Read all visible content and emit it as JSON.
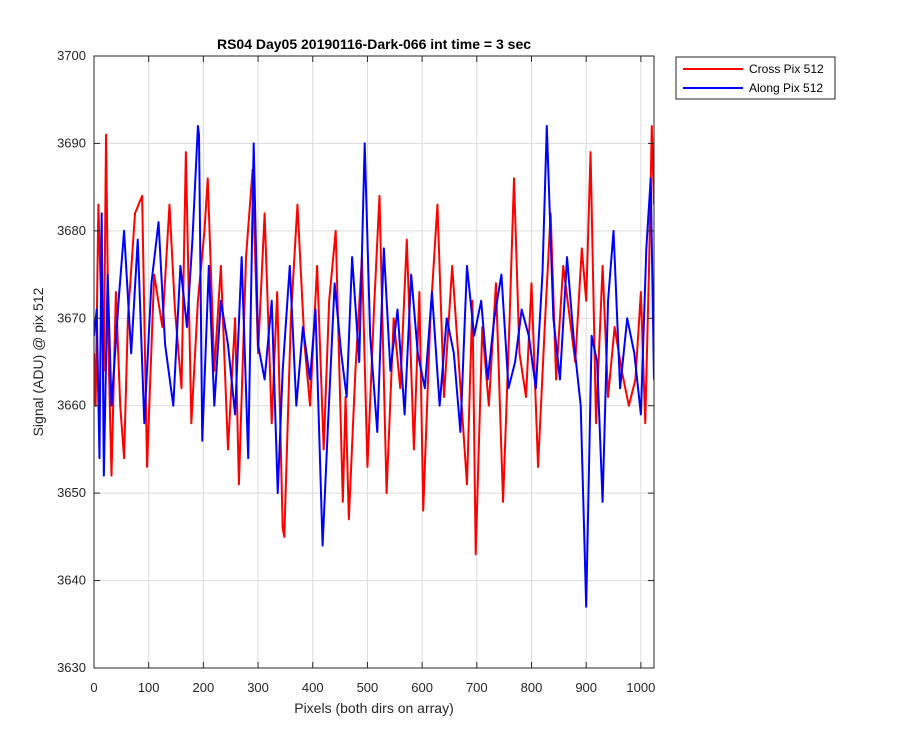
{
  "chart_data": {
    "type": "line",
    "title": "RS04 Day05 20190116-Dark-066 int time = 3 sec",
    "xlabel": "Pixels (both dirs on array)",
    "ylabel": "Signal (ADU) @ pix 512",
    "xlim": [
      0,
      1024
    ],
    "ylim": [
      3630,
      3700
    ],
    "xticks": [
      0,
      100,
      200,
      300,
      400,
      500,
      600,
      700,
      800,
      900,
      1000
    ],
    "yticks": [
      3630,
      3640,
      3650,
      3660,
      3670,
      3680,
      3690,
      3700
    ],
    "grid": true,
    "legend_position": "outside-top-right",
    "series": [
      {
        "name": "Cross Pix 512",
        "color": "#ff0000",
        "points": [
          [
            0,
            3666
          ],
          [
            3,
            3660
          ],
          [
            8,
            3683
          ],
          [
            13,
            3672
          ],
          [
            18,
            3664
          ],
          [
            22,
            3691
          ],
          [
            27,
            3665
          ],
          [
            32,
            3652
          ],
          [
            40,
            3673
          ],
          [
            48,
            3660
          ],
          [
            55,
            3654
          ],
          [
            62,
            3670
          ],
          [
            75,
            3682
          ],
          [
            88,
            3684
          ],
          [
            97,
            3653
          ],
          [
            110,
            3675
          ],
          [
            125,
            3669
          ],
          [
            138,
            3683
          ],
          [
            148,
            3671
          ],
          [
            160,
            3662
          ],
          [
            168,
            3689
          ],
          [
            178,
            3658
          ],
          [
            190,
            3672
          ],
          [
            202,
            3680
          ],
          [
            208,
            3686
          ],
          [
            220,
            3664
          ],
          [
            232,
            3676
          ],
          [
            245,
            3655
          ],
          [
            258,
            3670
          ],
          [
            265,
            3651
          ],
          [
            278,
            3677
          ],
          [
            290,
            3687
          ],
          [
            300,
            3666
          ],
          [
            312,
            3682
          ],
          [
            325,
            3658
          ],
          [
            335,
            3673
          ],
          [
            345,
            3646
          ],
          [
            348,
            3645
          ],
          [
            360,
            3670
          ],
          [
            372,
            3683
          ],
          [
            385,
            3667
          ],
          [
            395,
            3660
          ],
          [
            408,
            3676
          ],
          [
            420,
            3655
          ],
          [
            430,
            3672
          ],
          [
            442,
            3680
          ],
          [
            455,
            3649
          ],
          [
            460,
            3661
          ],
          [
            466,
            3647
          ],
          [
            478,
            3664
          ],
          [
            490,
            3677
          ],
          [
            500,
            3653
          ],
          [
            512,
            3671
          ],
          [
            522,
            3684
          ],
          [
            535,
            3650
          ],
          [
            548,
            3670
          ],
          [
            560,
            3662
          ],
          [
            572,
            3679
          ],
          [
            585,
            3655
          ],
          [
            595,
            3673
          ],
          [
            602,
            3648
          ],
          [
            615,
            3670
          ],
          [
            628,
            3683
          ],
          [
            640,
            3661
          ],
          [
            655,
            3676
          ],
          [
            668,
            3664
          ],
          [
            682,
            3651
          ],
          [
            692,
            3672
          ],
          [
            698,
            3643
          ],
          [
            710,
            3669
          ],
          [
            722,
            3660
          ],
          [
            735,
            3674
          ],
          [
            748,
            3649
          ],
          [
            760,
            3670
          ],
          [
            768,
            3686
          ],
          [
            778,
            3666
          ],
          [
            790,
            3661
          ],
          [
            800,
            3674
          ],
          [
            812,
            3653
          ],
          [
            825,
            3670
          ],
          [
            835,
            3682
          ],
          [
            845,
            3663
          ],
          [
            858,
            3676
          ],
          [
            868,
            3671
          ],
          [
            880,
            3665
          ],
          [
            892,
            3678
          ],
          [
            900,
            3672
          ],
          [
            908,
            3689
          ],
          [
            918,
            3658
          ],
          [
            930,
            3676
          ],
          [
            940,
            3661
          ],
          [
            952,
            3669
          ],
          [
            965,
            3664
          ],
          [
            978,
            3660
          ],
          [
            990,
            3663
          ],
          [
            1000,
            3673
          ],
          [
            1008,
            3658
          ],
          [
            1015,
            3676
          ],
          [
            1020,
            3692
          ],
          [
            1024,
            3683
          ]
        ]
      },
      {
        "name": "Along Pix 512",
        "color": "#0000ff",
        "points": [
          [
            0,
            3668
          ],
          [
            5,
            3671
          ],
          [
            10,
            3654
          ],
          [
            14,
            3682
          ],
          [
            18,
            3652
          ],
          [
            25,
            3675
          ],
          [
            32,
            3660
          ],
          [
            45,
            3672
          ],
          [
            55,
            3680
          ],
          [
            68,
            3666
          ],
          [
            80,
            3679
          ],
          [
            92,
            3658
          ],
          [
            105,
            3674
          ],
          [
            118,
            3681
          ],
          [
            130,
            3667
          ],
          [
            145,
            3660
          ],
          [
            158,
            3676
          ],
          [
            170,
            3669
          ],
          [
            180,
            3679
          ],
          [
            190,
            3692
          ],
          [
            192,
            3691
          ],
          [
            198,
            3656
          ],
          [
            210,
            3676
          ],
          [
            220,
            3660
          ],
          [
            232,
            3672
          ],
          [
            245,
            3667
          ],
          [
            258,
            3659
          ],
          [
            270,
            3677
          ],
          [
            282,
            3654
          ],
          [
            292,
            3690
          ],
          [
            300,
            3667
          ],
          [
            312,
            3663
          ],
          [
            325,
            3672
          ],
          [
            336,
            3650
          ],
          [
            345,
            3664
          ],
          [
            358,
            3676
          ],
          [
            370,
            3660
          ],
          [
            382,
            3669
          ],
          [
            395,
            3663
          ],
          [
            405,
            3671
          ],
          [
            418,
            3644
          ],
          [
            428,
            3658
          ],
          [
            440,
            3674
          ],
          [
            452,
            3666
          ],
          [
            462,
            3661
          ],
          [
            472,
            3677
          ],
          [
            485,
            3665
          ],
          [
            495,
            3690
          ],
          [
            505,
            3668
          ],
          [
            518,
            3657
          ],
          [
            530,
            3678
          ],
          [
            542,
            3664
          ],
          [
            555,
            3671
          ],
          [
            568,
            3659
          ],
          [
            580,
            3675
          ],
          [
            592,
            3666
          ],
          [
            605,
            3662
          ],
          [
            618,
            3673
          ],
          [
            632,
            3660
          ],
          [
            645,
            3670
          ],
          [
            658,
            3666
          ],
          [
            670,
            3657
          ],
          [
            682,
            3676
          ],
          [
            695,
            3668
          ],
          [
            708,
            3672
          ],
          [
            720,
            3663
          ],
          [
            732,
            3670
          ],
          [
            745,
            3675
          ],
          [
            758,
            3662
          ],
          [
            770,
            3665
          ],
          [
            782,
            3671
          ],
          [
            795,
            3668
          ],
          [
            808,
            3662
          ],
          [
            820,
            3675
          ],
          [
            828,
            3692
          ],
          [
            840,
            3670
          ],
          [
            852,
            3663
          ],
          [
            865,
            3677
          ],
          [
            878,
            3667
          ],
          [
            890,
            3660
          ],
          [
            900,
            3637
          ],
          [
            910,
            3668
          ],
          [
            920,
            3665
          ],
          [
            930,
            3649
          ],
          [
            940,
            3672
          ],
          [
            950,
            3680
          ],
          [
            962,
            3662
          ],
          [
            975,
            3670
          ],
          [
            988,
            3666
          ],
          [
            1000,
            3659
          ],
          [
            1010,
            3678
          ],
          [
            1018,
            3686
          ],
          [
            1024,
            3663
          ]
        ]
      }
    ]
  }
}
